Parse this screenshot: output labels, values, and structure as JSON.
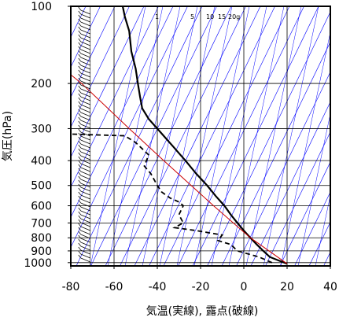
{
  "chart_data": {
    "type": "line",
    "xlabel": "気温(実線), 露点(破線)",
    "ylabel": "気圧(hPa)",
    "xlim": [
      -80,
      40
    ],
    "ylim": [
      1030,
      100
    ],
    "y_scale": "log",
    "x_ticks": [
      "-80",
      "-60",
      "-40",
      "-20",
      "0",
      "20",
      "40"
    ],
    "x_tick_values": [
      -80,
      -60,
      -40,
      -20,
      0,
      20,
      40
    ],
    "y_ticks": [
      "100",
      "200",
      "300",
      "400",
      "500",
      "600",
      "700",
      "800",
      "900",
      "1000"
    ],
    "y_tick_values": [
      100,
      200,
      300,
      400,
      500,
      600,
      700,
      800,
      900,
      1000
    ],
    "mixing_ratio_labels": [
      "1",
      "5",
      "10",
      "15",
      "20g"
    ],
    "colors": {
      "isotherm": "#0000ff",
      "temperature": "#000000",
      "dewpoint": "#000000",
      "reference_line": "#cc0000",
      "grid": "#000000"
    },
    "series": [
      {
        "role": "temperature",
        "line_style": "solid",
        "points": [
          {
            "p": 1010,
            "t": 20
          },
          {
            "p": 980,
            "t": 16
          },
          {
            "p": 950,
            "t": 12
          },
          {
            "p": 900,
            "t": 9
          },
          {
            "p": 850,
            "t": 6
          },
          {
            "p": 800,
            "t": 3
          },
          {
            "p": 750,
            "t": 0
          },
          {
            "p": 700,
            "t": -3
          },
          {
            "p": 650,
            "t": -6
          },
          {
            "p": 600,
            "t": -9
          },
          {
            "p": 550,
            "t": -13
          },
          {
            "p": 500,
            "t": -17
          },
          {
            "p": 450,
            "t": -22
          },
          {
            "p": 400,
            "t": -27
          },
          {
            "p": 350,
            "t": -33
          },
          {
            "p": 300,
            "t": -40
          },
          {
            "p": 275,
            "t": -44
          },
          {
            "p": 250,
            "t": -47
          },
          {
            "p": 225,
            "t": -48
          },
          {
            "p": 200,
            "t": -49
          },
          {
            "p": 175,
            "t": -50
          },
          {
            "p": 150,
            "t": -52
          },
          {
            "p": 125,
            "t": -53
          },
          {
            "p": 110,
            "t": -55
          },
          {
            "p": 100,
            "t": -56
          }
        ]
      },
      {
        "role": "dewpoint",
        "line_style": "dashed",
        "points": [
          {
            "p": 1000,
            "t": 13
          },
          {
            "p": 975,
            "t": 10
          },
          {
            "p": 950,
            "t": 7
          },
          {
            "p": 925,
            "t": 2
          },
          {
            "p": 900,
            "t": -3
          },
          {
            "p": 850,
            "t": -6
          },
          {
            "p": 820,
            "t": -12
          },
          {
            "p": 780,
            "t": -10
          },
          {
            "p": 750,
            "t": -22
          },
          {
            "p": 730,
            "t": -32
          },
          {
            "p": 700,
            "t": -28
          },
          {
            "p": 650,
            "t": -30
          },
          {
            "p": 600,
            "t": -28
          },
          {
            "p": 580,
            "t": -30
          },
          {
            "p": 560,
            "t": -34
          },
          {
            "p": 530,
            "t": -38
          },
          {
            "p": 500,
            "t": -40
          },
          {
            "p": 450,
            "t": -43
          },
          {
            "p": 420,
            "t": -46
          },
          {
            "p": 380,
            "t": -44
          },
          {
            "p": 340,
            "t": -50
          },
          {
            "p": 320,
            "t": -55
          },
          {
            "p": 315,
            "t": -80
          }
        ]
      },
      {
        "role": "reference",
        "line_style": "solid",
        "points": [
          {
            "p": 1010,
            "t": 20
          },
          {
            "p": 800,
            "t": 3
          },
          {
            "p": 600,
            "t": -14
          },
          {
            "p": 400,
            "t": -37
          },
          {
            "p": 300,
            "t": -53
          },
          {
            "p": 200,
            "t": -75
          },
          {
            "p": 185,
            "t": -80
          }
        ]
      }
    ],
    "wind_barb_column_t": -71
  }
}
